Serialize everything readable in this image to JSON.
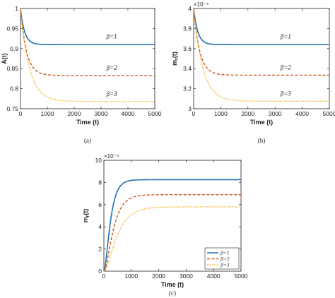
{
  "colors": {
    "beta1": "#1f6fb5",
    "beta2": "#d2521a",
    "beta3": "#f0b429"
  },
  "chart_data": [
    {
      "id": "a",
      "type": "line",
      "caption": "(a)",
      "xlabel": "Time (t)",
      "ylabel": "A(t)",
      "xlim": [
        0,
        5000
      ],
      "ylim": [
        0.75,
        1.0
      ],
      "x_ticks": [
        0,
        1000,
        2000,
        3000,
        4000,
        5000
      ],
      "y_ticks": [
        0.75,
        0.8,
        0.85,
        0.9,
        0.95,
        1
      ],
      "y_tick_labels": [
        "0.75",
        "0.8",
        "0.85",
        "0.9",
        "0.95",
        "1"
      ],
      "exponent_label": "",
      "series": [
        {
          "name": "β=1",
          "start": 1.0,
          "end": 0.91,
          "tau": 150,
          "shape": "decay",
          "style": "solid",
          "color_key": "beta1",
          "label_x": 3200,
          "label_y": 0.925
        },
        {
          "name": "β=2",
          "start": 1.0,
          "end": 0.833,
          "tau": 220,
          "shape": "decay",
          "style": "dashed",
          "color_key": "beta2",
          "label_x": 3200,
          "label_y": 0.847
        },
        {
          "name": "β=3",
          "start": 1.0,
          "end": 0.768,
          "tau": 330,
          "shape": "decay",
          "style": "dotted",
          "color_key": "beta3",
          "label_x": 3200,
          "label_y": 0.782
        }
      ]
    },
    {
      "id": "b",
      "type": "line",
      "caption": "(b)",
      "xlabel": "Time (t)",
      "ylabel": "m_r(t)",
      "xlim": [
        0,
        5000
      ],
      "ylim": [
        3.0,
        4.0
      ],
      "x_ticks": [
        0,
        1000,
        2000,
        3000,
        4000,
        5000
      ],
      "y_ticks": [
        3,
        3.2,
        3.4,
        3.6,
        3.8,
        4
      ],
      "y_tick_labels": [
        "3",
        "3.2",
        "3.4",
        "3.6",
        "3.8",
        "4"
      ],
      "exponent_label": "×10⁻⁴",
      "series": [
        {
          "name": "β=1",
          "start": 4.0,
          "end": 3.64,
          "tau": 150,
          "shape": "decay",
          "style": "solid",
          "color_key": "beta1",
          "label_x": 3200,
          "label_y": 3.7
        },
        {
          "name": "β=2",
          "start": 4.0,
          "end": 3.335,
          "tau": 220,
          "shape": "decay",
          "style": "dashed",
          "color_key": "beta2",
          "label_x": 3200,
          "label_y": 3.39
        },
        {
          "name": "β=3",
          "start": 4.0,
          "end": 3.075,
          "tau": 330,
          "shape": "decay",
          "style": "dotted",
          "color_key": "beta3",
          "label_x": 3200,
          "label_y": 3.13
        }
      ]
    },
    {
      "id": "c",
      "type": "line",
      "caption": "(c)",
      "xlabel": "Time (t)",
      "ylabel": "m_r(t)",
      "xlim": [
        0,
        5000
      ],
      "ylim": [
        0,
        10
      ],
      "x_ticks": [
        0,
        1000,
        2000,
        3000,
        4000,
        5000
      ],
      "y_ticks": [
        0,
        2,
        4,
        6,
        8,
        10
      ],
      "y_tick_labels": [
        "0",
        "2",
        "4",
        "6",
        "8",
        "10"
      ],
      "exponent_label": "×10⁻⁴",
      "legend": "bottom-right",
      "series": [
        {
          "name": "β=1",
          "start": 0,
          "end": 8.25,
          "tau": 180,
          "shape": "sigmoid",
          "style": "solid",
          "color_key": "beta1"
        },
        {
          "name": "β=2",
          "start": 0,
          "end": 6.9,
          "tau": 260,
          "shape": "sigmoid",
          "style": "dashed",
          "color_key": "beta2"
        },
        {
          "name": "β=3",
          "start": 0,
          "end": 5.8,
          "tau": 360,
          "shape": "sigmoid",
          "style": "dotted",
          "color_key": "beta3"
        }
      ]
    }
  ]
}
